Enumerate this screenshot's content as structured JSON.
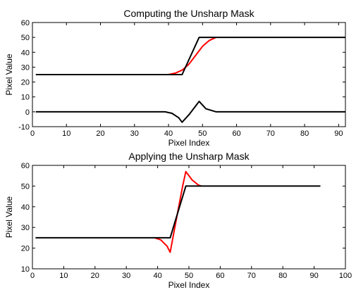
{
  "chart_data": [
    {
      "type": "line",
      "title": "Computing the Unsharp Mask",
      "xlabel": "Pixel Index",
      "ylabel": "Pixel Value",
      "xlim": [
        0,
        92
      ],
      "ylim": [
        -10,
        60
      ],
      "xticks": [
        0,
        10,
        20,
        30,
        40,
        50,
        60,
        70,
        80,
        90
      ],
      "yticks": [
        -10,
        0,
        10,
        20,
        30,
        40,
        50,
        60
      ],
      "grid": false,
      "series": [
        {
          "color": "#ff0000",
          "points": [
            [
              40,
              25
            ],
            [
              42,
              26
            ],
            [
              44,
              28
            ],
            [
              46,
              32
            ],
            [
              48,
              38
            ],
            [
              50,
              44
            ],
            [
              52,
              48
            ],
            [
              54,
              50
            ]
          ]
        },
        {
          "color": "#000000",
          "points": [
            [
              1,
              25
            ],
            [
              44,
              25
            ],
            [
              49,
              50
            ],
            [
              92,
              50
            ]
          ]
        },
        {
          "color": "#000000",
          "points": [
            [
              1,
              0
            ],
            [
              39,
              0
            ],
            [
              41,
              -1
            ],
            [
              43,
              -4
            ],
            [
              44,
              -7
            ],
            [
              46,
              -2
            ],
            [
              48,
              4
            ],
            [
              49,
              7
            ],
            [
              51,
              2
            ],
            [
              54,
              0
            ],
            [
              92,
              0
            ]
          ]
        }
      ]
    },
    {
      "type": "line",
      "title": "Applying the Unsharp Mask",
      "xlabel": "Pixel Index",
      "ylabel": "Pixel Value",
      "xlim": [
        0,
        100
      ],
      "ylim": [
        10,
        60
      ],
      "xticks": [
        0,
        10,
        20,
        30,
        40,
        50,
        60,
        70,
        80,
        90,
        100
      ],
      "yticks": [
        10,
        20,
        30,
        40,
        50,
        60
      ],
      "grid": false,
      "series": [
        {
          "color": "#ff0000",
          "points": [
            [
              39,
              25
            ],
            [
              41,
              24
            ],
            [
              43,
              21
            ],
            [
              44,
              18
            ],
            [
              46,
              34
            ],
            [
              48,
              50
            ],
            [
              49,
              57
            ],
            [
              51,
              53
            ],
            [
              53,
              50.5
            ],
            [
              54,
              50
            ]
          ]
        },
        {
          "color": "#000000",
          "points": [
            [
              1,
              25
            ],
            [
              44,
              25
            ],
            [
              49,
              50
            ],
            [
              92,
              50
            ]
          ]
        }
      ]
    }
  ]
}
